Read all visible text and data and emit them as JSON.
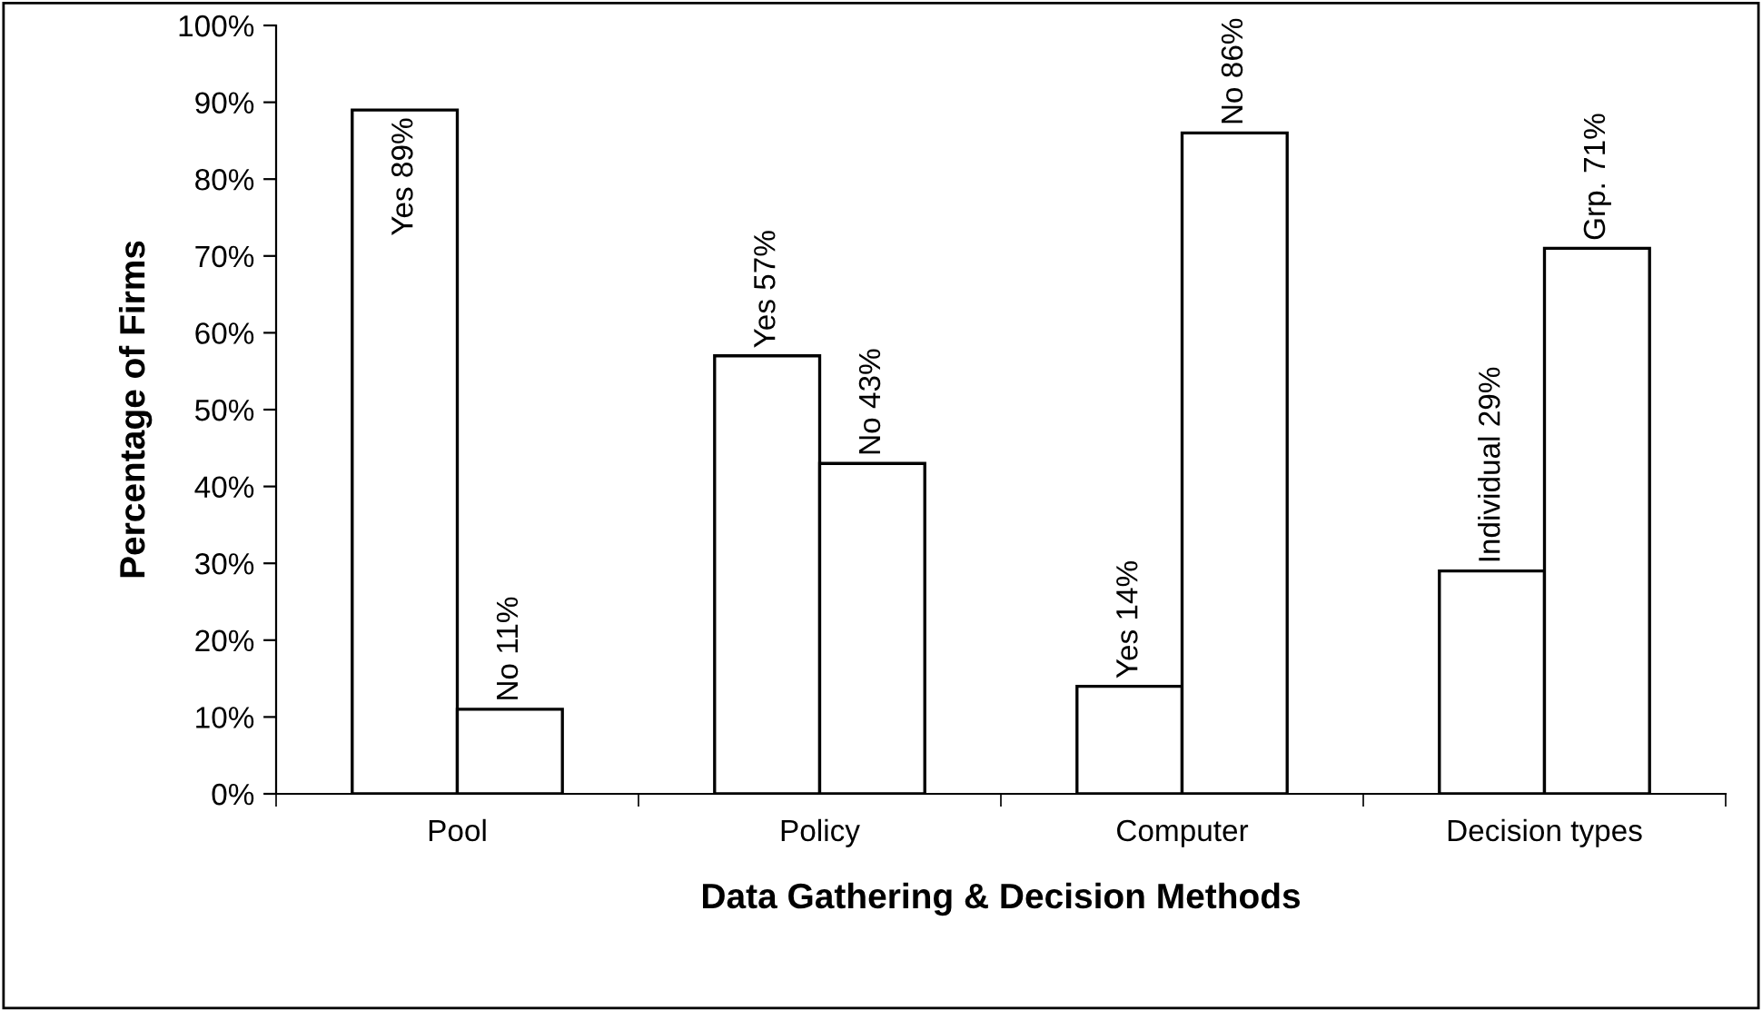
{
  "chart_data": {
    "type": "bar",
    "xlabel": "Data Gathering & Decision Methods",
    "ylabel": "Percentage of Firms",
    "categories": [
      "Pool",
      "Policy",
      "Computer",
      "Decision types"
    ],
    "series": [
      {
        "color": "#ffffff",
        "values": [
          89,
          57,
          14,
          29
        ],
        "value_labels": [
          "Yes 89%",
          "Yes 57%",
          "Yes 14%",
          "Individual 29%"
        ]
      },
      {
        "color": "#ffffff",
        "values": [
          11,
          43,
          86,
          71
        ],
        "value_labels": [
          "No 11%",
          "No 43%",
          "No 86%",
          "Grp. 71%"
        ]
      }
    ],
    "ylim": [
      0,
      100
    ],
    "yticks": [
      {
        "value": 0,
        "label": "0%"
      },
      {
        "value": 10,
        "label": "10%"
      },
      {
        "value": 20,
        "label": "20%"
      },
      {
        "value": 30,
        "label": "30%"
      },
      {
        "value": 40,
        "label": "40%"
      },
      {
        "value": 50,
        "label": "50%"
      },
      {
        "value": 60,
        "label": "60%"
      },
      {
        "value": 70,
        "label": "70%"
      },
      {
        "value": 80,
        "label": "80%"
      },
      {
        "value": 90,
        "label": "90%"
      },
      {
        "value": 100,
        "label": "100%"
      }
    ],
    "grid": false
  }
}
